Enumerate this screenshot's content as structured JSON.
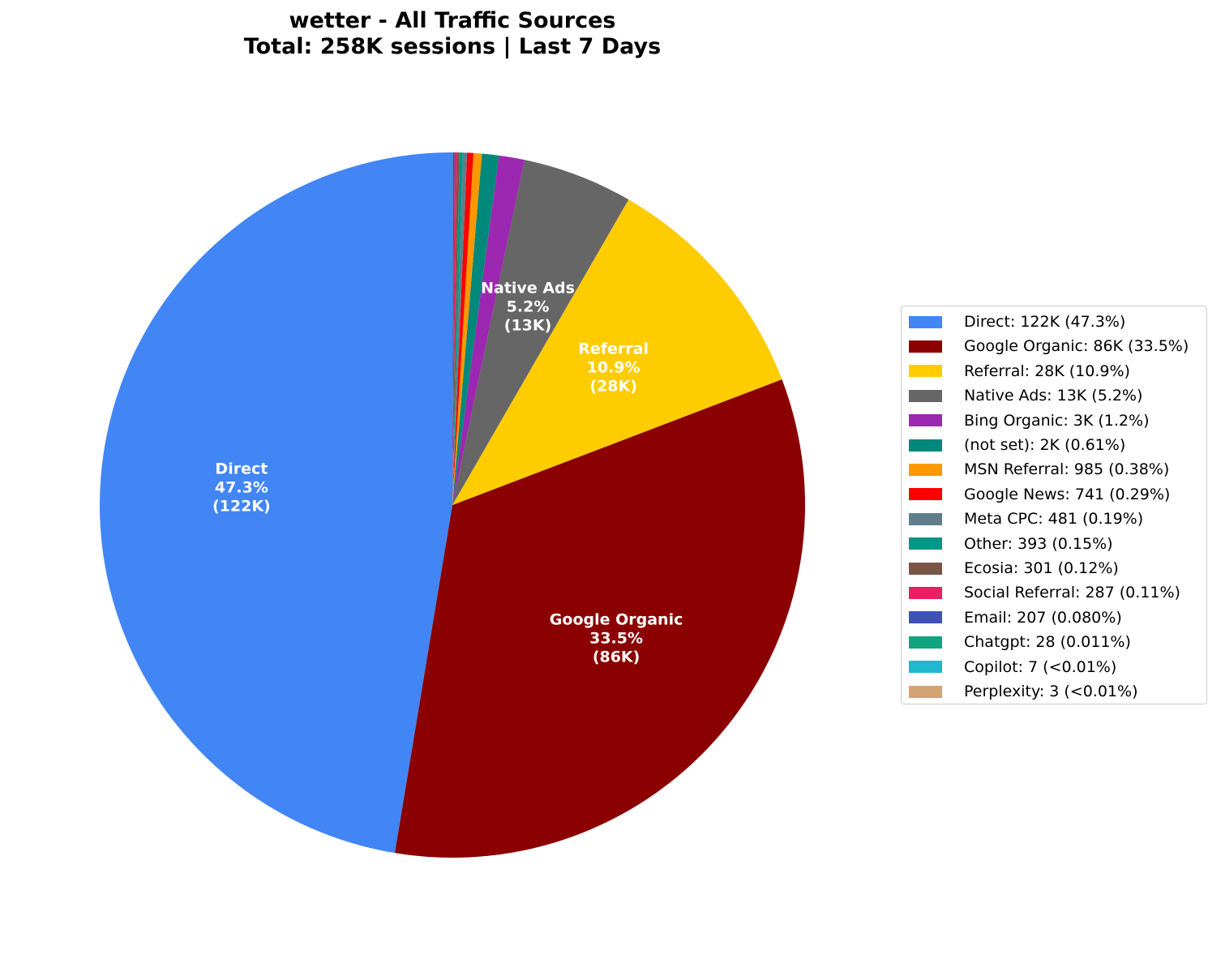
{
  "title": {
    "line1": "wetter - All Traffic Sources",
    "line2": "Total: 258K sessions | Last 7 Days"
  },
  "chart_data": {
    "type": "pie",
    "title": "wetter - All Traffic Sources\nTotal: 258K sessions | Last 7 Days",
    "start_angle": 90,
    "direction": "counterclockwise",
    "legend_position": "right",
    "total": "258K sessions",
    "slices": [
      {
        "name": "Direct",
        "value": 122000,
        "value_label": "122K",
        "percent": 47.3,
        "percent_label": "47.3%",
        "color": "#4285F4",
        "legend": "Direct: 122K (47.3%)",
        "label": [
          "Direct",
          "47.3%",
          "(122K)"
        ]
      },
      {
        "name": "Google Organic",
        "value": 86000,
        "value_label": "86K",
        "percent": 33.5,
        "percent_label": "33.5%",
        "color": "#8B0000",
        "legend": "Google Organic: 86K (33.5%)",
        "label": [
          "Google Organic",
          "33.5%",
          "(86K)"
        ]
      },
      {
        "name": "Referral",
        "value": 28000,
        "value_label": "28K",
        "percent": 10.9,
        "percent_label": "10.9%",
        "color": "#FFCC00",
        "legend": "Referral: 28K (10.9%)",
        "label": [
          "Referral",
          "10.9%",
          "(28K)"
        ]
      },
      {
        "name": "Native Ads",
        "value": 13000,
        "value_label": "13K",
        "percent": 5.2,
        "percent_label": "5.2%",
        "color": "#666666",
        "legend": "Native Ads: 13K (5.2%)",
        "label": [
          "Native Ads",
          "5.2%",
          "(13K)"
        ]
      },
      {
        "name": "Bing Organic",
        "value": 3000,
        "value_label": "3K",
        "percent": 1.2,
        "percent_label": "1.2%",
        "color": "#9C27B0",
        "legend": "Bing Organic: 3K (1.2%)"
      },
      {
        "name": "(not set)",
        "value": 2000,
        "value_label": "2K",
        "percent": 0.61,
        "percent_label": "0.61%",
        "color": "#00897B",
        "legend": "(not set): 2K (0.61%)"
      },
      {
        "name": "MSN Referral",
        "value": 985,
        "value_label": "985",
        "percent": 0.38,
        "percent_label": "0.38%",
        "color": "#FF9800",
        "legend": "MSN Referral: 985 (0.38%)"
      },
      {
        "name": "Google News",
        "value": 741,
        "value_label": "741",
        "percent": 0.29,
        "percent_label": "0.29%",
        "color": "#FF0000",
        "legend": "Google News: 741 (0.29%)"
      },
      {
        "name": "Meta CPC",
        "value": 481,
        "value_label": "481",
        "percent": 0.19,
        "percent_label": "0.19%",
        "color": "#607D8B",
        "legend": "Meta CPC: 481 (0.19%)"
      },
      {
        "name": "Other",
        "value": 393,
        "value_label": "393",
        "percent": 0.15,
        "percent_label": "0.15%",
        "color": "#009688",
        "legend": "Other: 393 (0.15%)"
      },
      {
        "name": "Ecosia",
        "value": 301,
        "value_label": "301",
        "percent": 0.12,
        "percent_label": "0.12%",
        "color": "#795548",
        "legend": "Ecosia: 301 (0.12%)"
      },
      {
        "name": "Social Referral",
        "value": 287,
        "value_label": "287",
        "percent": 0.11,
        "percent_label": "0.11%",
        "color": "#E91E63",
        "legend": "Social Referral: 287 (0.11%)"
      },
      {
        "name": "Email",
        "value": 207,
        "value_label": "207",
        "percent": 0.08,
        "percent_label": "0.080%",
        "color": "#3F51B5",
        "legend": "Email: 207 (0.080%)"
      },
      {
        "name": "Chatgpt",
        "value": 28,
        "value_label": "28",
        "percent": 0.011,
        "percent_label": "0.011%",
        "color": "#10A37F",
        "legend": "Chatgpt: 28 (0.011%)"
      },
      {
        "name": "Copilot",
        "value": 7,
        "value_label": "7",
        "percent": 0.003,
        "percent_label": "<0.01%",
        "color": "#1FB8CD",
        "legend": "Copilot: 7 (<0.01%)"
      },
      {
        "name": "Perplexity",
        "value": 3,
        "value_label": "3",
        "percent": 0.001,
        "percent_label": "<0.01%",
        "color": "#D4A373",
        "legend": "Perplexity: 3 (<0.01%)"
      }
    ]
  }
}
